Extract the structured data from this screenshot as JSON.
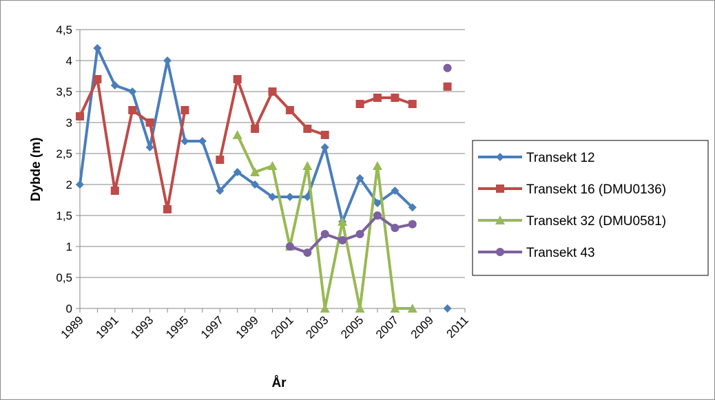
{
  "chart_data": {
    "type": "line",
    "title": "",
    "xlabel": "År",
    "ylabel": "Dybde (m)",
    "xlim": [
      1989,
      2011
    ],
    "ylim": [
      0,
      4.5
    ],
    "x_ticks": [
      "1989",
      "1991",
      "1993",
      "1995",
      "1997",
      "1999",
      "2001",
      "2003",
      "2005",
      "2007",
      "2009",
      "2011"
    ],
    "y_ticks": [
      "0",
      "0,5",
      "1",
      "1,5",
      "2",
      "2,5",
      "3",
      "3,5",
      "4",
      "4,5"
    ],
    "grid": "horizontal",
    "legend_position": "right",
    "series": [
      {
        "name": "Transekt 12",
        "color": "#4a7ebb",
        "marker": "diamond",
        "points": [
          [
            1989,
            2.0
          ],
          [
            1990,
            4.2
          ],
          [
            1991,
            3.6
          ],
          [
            1992,
            3.5
          ],
          [
            1993,
            2.6
          ],
          [
            1994,
            4.0
          ],
          [
            1995,
            2.7
          ],
          [
            1996,
            2.7
          ],
          [
            1997,
            1.9
          ],
          [
            1998,
            2.2
          ],
          [
            1999,
            2.0
          ],
          [
            2000,
            1.8
          ],
          [
            2001,
            1.8
          ],
          [
            2002,
            1.8
          ],
          [
            2003,
            2.6
          ],
          [
            2004,
            1.4
          ],
          [
            2005,
            2.1
          ],
          [
            2006,
            1.7
          ],
          [
            2007,
            1.9
          ],
          [
            2008,
            1.63
          ],
          null,
          [
            2010,
            0
          ]
        ]
      },
      {
        "name": "Transekt 16 (DMU0136)",
        "color": "#be4b48",
        "marker": "square",
        "points": [
          [
            1989,
            3.1
          ],
          [
            1990,
            3.7
          ],
          [
            1991,
            1.9
          ],
          [
            1992,
            3.2
          ],
          [
            1993,
            3.0
          ],
          [
            1994,
            1.6
          ],
          [
            1995,
            3.2
          ],
          null,
          [
            1997,
            2.4
          ],
          [
            1998,
            3.7
          ],
          [
            1999,
            2.9
          ],
          [
            2000,
            3.5
          ],
          [
            2001,
            3.2
          ],
          [
            2002,
            2.9
          ],
          [
            2003,
            2.8
          ],
          null,
          [
            2005,
            3.3
          ],
          [
            2006,
            3.4
          ],
          [
            2007,
            3.4
          ],
          [
            2008,
            3.3
          ],
          null,
          [
            2010,
            3.58
          ]
        ]
      },
      {
        "name": "Transekt 32 (DMU0581)",
        "color": "#98b954",
        "marker": "triangle",
        "points": [
          [
            1998,
            2.8
          ],
          [
            1999,
            2.2
          ],
          [
            2000,
            2.3
          ],
          [
            2001,
            1.0
          ],
          [
            2002,
            2.3
          ],
          [
            2003,
            0
          ],
          [
            2004,
            1.4
          ],
          [
            2005,
            0
          ],
          [
            2006,
            2.3
          ],
          [
            2007,
            0
          ],
          [
            2008,
            0
          ]
        ]
      },
      {
        "name": "Transekt 43",
        "color": "#7d60a0",
        "marker": "circle",
        "points": [
          [
            2001,
            1.0
          ],
          [
            2002,
            0.9
          ],
          [
            2003,
            1.2
          ],
          [
            2004,
            1.1
          ],
          [
            2005,
            1.2
          ],
          [
            2006,
            1.5
          ],
          [
            2007,
            1.3
          ],
          [
            2008,
            1.36
          ],
          null,
          [
            2010,
            3.88
          ]
        ]
      }
    ]
  }
}
